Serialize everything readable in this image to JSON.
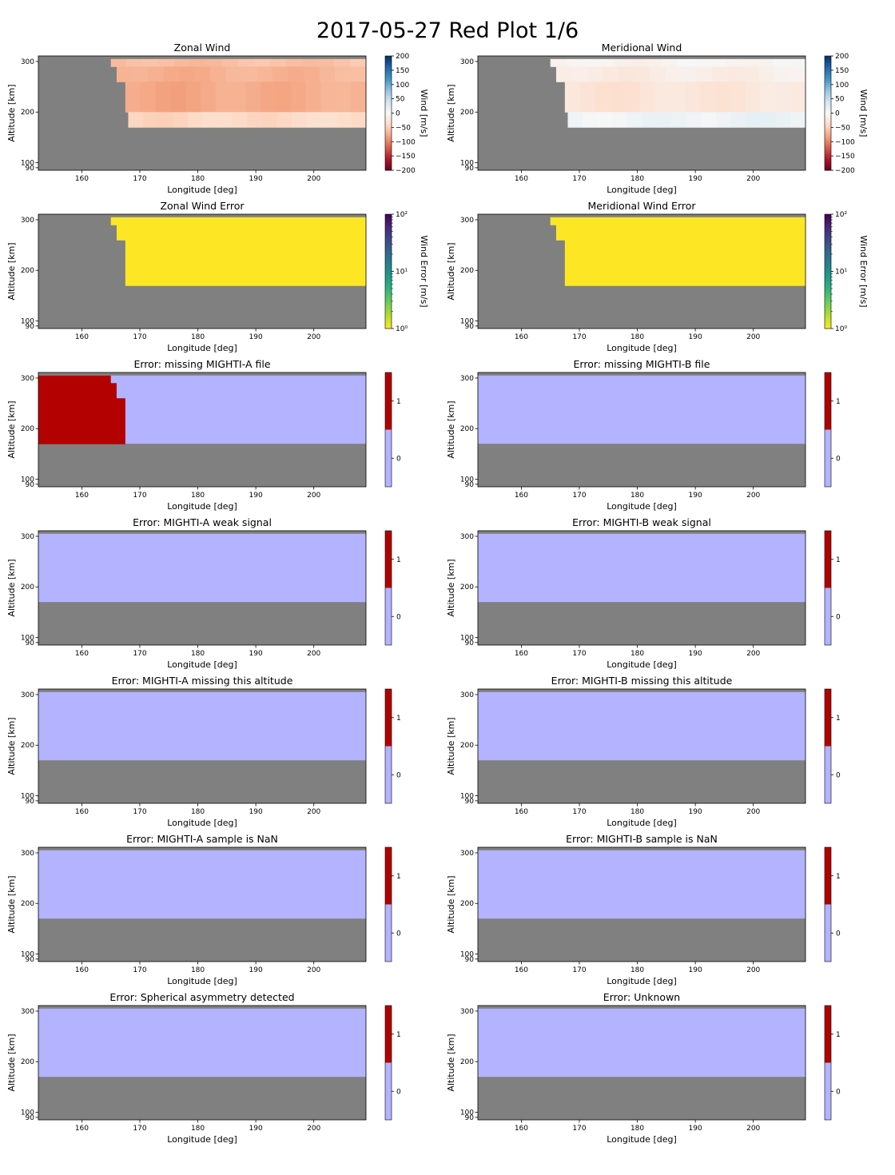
{
  "figure": {
    "title": "2017-05-27 Red Plot 1/6"
  },
  "colors": {
    "missing": "#808080",
    "flag_0": "#b3b3ff",
    "flag_1": "#b30000",
    "error_uniform": "#fde725"
  },
  "chart_data": [
    {
      "type": "heatmap",
      "name": "zonal-wind",
      "title": "Zonal Wind",
      "xlabel": "Longitude [deg]",
      "ylabel": "Altitude [km]",
      "xlim": [
        152.5,
        209
      ],
      "ylim": [
        85,
        311
      ],
      "xticks": [
        160,
        170,
        180,
        190,
        200
      ],
      "yticks": [
        90,
        100,
        200,
        300
      ],
      "colorbar": {
        "label": "Wind [m/s]",
        "type": "diverging",
        "scale": "linear",
        "range": [
          -200,
          200
        ],
        "ticks": [
          200,
          150,
          100,
          50,
          0,
          -50,
          -100,
          -150,
          -200
        ]
      },
      "valid_region": {
        "rows": [
          [
            165,
            290,
            305
          ],
          [
            166,
            260,
            290
          ],
          [
            167.5,
            200,
            260
          ],
          [
            168,
            170,
            200
          ]
        ],
        "ymax": 305
      },
      "representative_values": [
        {
          "alt_range": [
            290,
            305
          ],
          "value": -60
        },
        {
          "alt_range": [
            260,
            290
          ],
          "value": -70
        },
        {
          "alt_range": [
            200,
            260
          ],
          "value": -75
        },
        {
          "alt_range": [
            170,
            200
          ],
          "value": -40
        }
      ]
    },
    {
      "type": "heatmap",
      "name": "meridional-wind",
      "title": "Meridional Wind",
      "xlabel": "Longitude [deg]",
      "ylabel": "Altitude [km]",
      "xlim": [
        152.5,
        209
      ],
      "ylim": [
        85,
        311
      ],
      "xticks": [
        160,
        170,
        180,
        190,
        200
      ],
      "yticks": [
        90,
        100,
        200,
        300
      ],
      "colorbar": {
        "label": "Wind [m/s]",
        "type": "diverging",
        "scale": "linear",
        "range": [
          -200,
          200
        ],
        "ticks": [
          200,
          150,
          100,
          50,
          0,
          -50,
          -100,
          -150,
          -200
        ]
      },
      "valid_region": {
        "rows": [
          [
            165,
            290,
            305
          ],
          [
            166,
            260,
            290
          ],
          [
            167.5,
            200,
            260
          ],
          [
            168,
            170,
            200
          ]
        ],
        "ymax": 305
      },
      "representative_values": [
        {
          "alt_range": [
            290,
            305
          ],
          "value": -5
        },
        {
          "alt_range": [
            260,
            290
          ],
          "value": -15
        },
        {
          "alt_range": [
            200,
            260
          ],
          "value": -25
        },
        {
          "alt_range": [
            170,
            200
          ],
          "value": 10
        }
      ]
    },
    {
      "type": "heatmap",
      "name": "zonal-wind-error",
      "title": "Zonal Wind Error",
      "xlabel": "Longitude [deg]",
      "ylabel": "Altitude [km]",
      "xlim": [
        152.5,
        209
      ],
      "ylim": [
        85,
        311
      ],
      "xticks": [
        160,
        170,
        180,
        190,
        200
      ],
      "yticks": [
        90,
        100,
        200,
        300
      ],
      "colorbar": {
        "label": "Wind Error [m/s]",
        "type": "viridis",
        "scale": "log",
        "range": [
          1,
          100
        ],
        "ticks": [
          {
            "value": 100,
            "label": "10²"
          },
          {
            "value": 10,
            "label": "10¹"
          },
          {
            "value": 1,
            "label": "10⁰"
          }
        ]
      },
      "valid_region": {
        "rows": [
          [
            165,
            290,
            305
          ],
          [
            166,
            260,
            290
          ],
          [
            167.5,
            170,
            260
          ]
        ],
        "ymax": 305
      },
      "value": 1
    },
    {
      "type": "heatmap",
      "name": "meridional-wind-error",
      "title": "Meridional Wind Error",
      "xlabel": "Longitude [deg]",
      "ylabel": "Altitude [km]",
      "xlim": [
        152.5,
        209
      ],
      "ylim": [
        85,
        311
      ],
      "xticks": [
        160,
        170,
        180,
        190,
        200
      ],
      "yticks": [
        90,
        100,
        200,
        300
      ],
      "colorbar": {
        "label": "Wind Error [m/s]",
        "type": "viridis",
        "scale": "log",
        "range": [
          1,
          100
        ],
        "ticks": [
          {
            "value": 100,
            "label": "10²"
          },
          {
            "value": 10,
            "label": "10¹"
          },
          {
            "value": 1,
            "label": "10⁰"
          }
        ]
      },
      "valid_region": {
        "rows": [
          [
            165,
            290,
            305
          ],
          [
            166,
            260,
            290
          ],
          [
            167.5,
            170,
            260
          ]
        ],
        "ymax": 305
      },
      "value": 1
    },
    {
      "type": "heatmap",
      "name": "error-missing-mighti-a-file",
      "title": "Error: missing MIGHTI-A file",
      "xlabel": "Longitude [deg]",
      "ylabel": "Altitude [km]",
      "xlim": [
        152.5,
        209
      ],
      "ylim": [
        85,
        311
      ],
      "xticks": [
        160,
        170,
        180,
        190,
        200
      ],
      "yticks": [
        90,
        100,
        200,
        300
      ],
      "colorbar": {
        "type": "flag",
        "ticks": [
          1,
          0
        ]
      },
      "flag_region": {
        "ymin": 170,
        "ymax": 305,
        "flag1_rows": [
          [
            165,
            290,
            305
          ],
          [
            166,
            260,
            290
          ],
          [
            167.5,
            170,
            260
          ]
        ]
      }
    },
    {
      "type": "heatmap",
      "name": "error-missing-mighti-b-file",
      "title": "Error: missing MIGHTI-B file",
      "xlabel": "Longitude [deg]",
      "ylabel": "Altitude [km]",
      "xlim": [
        152.5,
        209
      ],
      "ylim": [
        85,
        311
      ],
      "xticks": [
        160,
        170,
        180,
        190,
        200
      ],
      "yticks": [
        90,
        100,
        200,
        300
      ],
      "colorbar": {
        "type": "flag",
        "ticks": [
          1,
          0
        ]
      },
      "flag_region": {
        "ymin": 170,
        "ymax": 305,
        "flag1_rows": []
      }
    },
    {
      "type": "heatmap",
      "name": "error-mighti-a-weak-signal",
      "title": "Error: MIGHTI-A weak signal",
      "xlabel": "Longitude [deg]",
      "ylabel": "Altitude [km]",
      "xlim": [
        152.5,
        209
      ],
      "ylim": [
        85,
        311
      ],
      "xticks": [
        160,
        170,
        180,
        190,
        200
      ],
      "yticks": [
        90,
        100,
        200,
        300
      ],
      "colorbar": {
        "type": "flag",
        "ticks": [
          1,
          0
        ]
      },
      "flag_region": {
        "ymin": 170,
        "ymax": 305,
        "flag1_rows": []
      }
    },
    {
      "type": "heatmap",
      "name": "error-mighti-b-weak-signal",
      "title": "Error: MIGHTI-B weak signal",
      "xlabel": "Longitude [deg]",
      "ylabel": "Altitude [km]",
      "xlim": [
        152.5,
        209
      ],
      "ylim": [
        85,
        311
      ],
      "xticks": [
        160,
        170,
        180,
        190,
        200
      ],
      "yticks": [
        90,
        100,
        200,
        300
      ],
      "colorbar": {
        "type": "flag",
        "ticks": [
          1,
          0
        ]
      },
      "flag_region": {
        "ymin": 170,
        "ymax": 305,
        "flag1_rows": []
      }
    },
    {
      "type": "heatmap",
      "name": "error-mighti-a-missing-altitude",
      "title": "Error: MIGHTI-A missing this altitude",
      "xlabel": "Longitude [deg]",
      "ylabel": "Altitude [km]",
      "xlim": [
        152.5,
        209
      ],
      "ylim": [
        85,
        311
      ],
      "xticks": [
        160,
        170,
        180,
        190,
        200
      ],
      "yticks": [
        90,
        100,
        200,
        300
      ],
      "colorbar": {
        "type": "flag",
        "ticks": [
          1,
          0
        ]
      },
      "flag_region": {
        "ymin": 170,
        "ymax": 305,
        "flag1_rows": []
      }
    },
    {
      "type": "heatmap",
      "name": "error-mighti-b-missing-altitude",
      "title": "Error: MIGHTI-B missing this altitude",
      "xlabel": "Longitude [deg]",
      "ylabel": "Altitude [km]",
      "xlim": [
        152.5,
        209
      ],
      "ylim": [
        85,
        311
      ],
      "xticks": [
        160,
        170,
        180,
        190,
        200
      ],
      "yticks": [
        90,
        100,
        200,
        300
      ],
      "colorbar": {
        "type": "flag",
        "ticks": [
          1,
          0
        ]
      },
      "flag_region": {
        "ymin": 170,
        "ymax": 305,
        "flag1_rows": []
      }
    },
    {
      "type": "heatmap",
      "name": "error-mighti-a-sample-nan",
      "title": "Error: MIGHTI-A sample is NaN",
      "xlabel": "Longitude [deg]",
      "ylabel": "Altitude [km]",
      "xlim": [
        152.5,
        209
      ],
      "ylim": [
        85,
        311
      ],
      "xticks": [
        160,
        170,
        180,
        190,
        200
      ],
      "yticks": [
        90,
        100,
        200,
        300
      ],
      "colorbar": {
        "type": "flag",
        "ticks": [
          1,
          0
        ]
      },
      "flag_region": {
        "ymin": 170,
        "ymax": 305,
        "flag1_rows": []
      }
    },
    {
      "type": "heatmap",
      "name": "error-mighti-b-sample-nan",
      "title": "Error: MIGHTI-B sample is NaN",
      "xlabel": "Longitude [deg]",
      "ylabel": "Altitude [km]",
      "xlim": [
        152.5,
        209
      ],
      "ylim": [
        85,
        311
      ],
      "xticks": [
        160,
        170,
        180,
        190,
        200
      ],
      "yticks": [
        90,
        100,
        200,
        300
      ],
      "colorbar": {
        "type": "flag",
        "ticks": [
          1,
          0
        ]
      },
      "flag_region": {
        "ymin": 170,
        "ymax": 305,
        "flag1_rows": []
      }
    },
    {
      "type": "heatmap",
      "name": "error-spherical-asymmetry",
      "title": "Error: Spherical asymmetry detected",
      "xlabel": "Longitude [deg]",
      "ylabel": "Altitude [km]",
      "xlim": [
        152.5,
        209
      ],
      "ylim": [
        85,
        311
      ],
      "xticks": [
        160,
        170,
        180,
        190,
        200
      ],
      "yticks": [
        90,
        100,
        200,
        300
      ],
      "colorbar": {
        "type": "flag",
        "ticks": [
          1,
          0
        ]
      },
      "flag_region": {
        "ymin": 170,
        "ymax": 305,
        "flag1_rows": []
      }
    },
    {
      "type": "heatmap",
      "name": "error-unknown",
      "title": "Error: Unknown",
      "xlabel": "Longitude [deg]",
      "ylabel": "Altitude [km]",
      "xlim": [
        152.5,
        209
      ],
      "ylim": [
        85,
        311
      ],
      "xticks": [
        160,
        170,
        180,
        190,
        200
      ],
      "yticks": [
        90,
        100,
        200,
        300
      ],
      "colorbar": {
        "type": "flag",
        "ticks": [
          1,
          0
        ]
      },
      "flag_region": {
        "ymin": 170,
        "ymax": 305,
        "flag1_rows": []
      }
    }
  ]
}
